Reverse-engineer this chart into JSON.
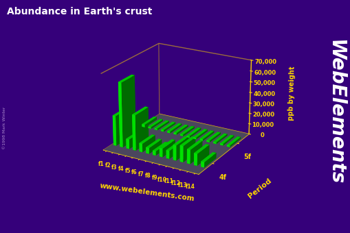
{
  "title": "Abundance in Earth's crust",
  "ylabel_z": "ppb by weight",
  "ylabel_period": "Period",
  "website": "www.webelements.com",
  "watermark": "WebElements",
  "copyright": "©1998 Mark Winter",
  "bg_color": "#35007a",
  "bar_color": "#00ff00",
  "floor_color": "#666677",
  "axis_color": "#ffd700",
  "title_color": "#ffffff",
  "watermark_color": "#ffffff",
  "copyright_color": "#aa88cc",
  "f_cols": [
    "f1",
    "f2",
    "f3",
    "f4",
    "f5",
    "f6",
    "f7",
    "f8",
    "f9",
    "f10",
    "f11",
    "f12",
    "f13",
    "f14"
  ],
  "periods": [
    "4f",
    "5f"
  ],
  "values_4f": [
    28000,
    60000,
    9000,
    33000,
    8000,
    5500,
    4000,
    8000,
    7500,
    14000,
    15000,
    13000,
    11000,
    5000
  ],
  "values_5f": [
    2500,
    600,
    300,
    150,
    80,
    60,
    60,
    60,
    60,
    60,
    60,
    60,
    60,
    60
  ],
  "min_bar_height": 1500,
  "ylim": [
    0,
    70000
  ],
  "yticks": [
    0,
    10000,
    20000,
    30000,
    40000,
    50000,
    60000,
    70000
  ],
  "ytick_labels": [
    "0",
    "10,000",
    "20,000",
    "30,000",
    "40,000",
    "50,000",
    "60,000",
    "70,000"
  ],
  "elev": 22,
  "azim": -60
}
